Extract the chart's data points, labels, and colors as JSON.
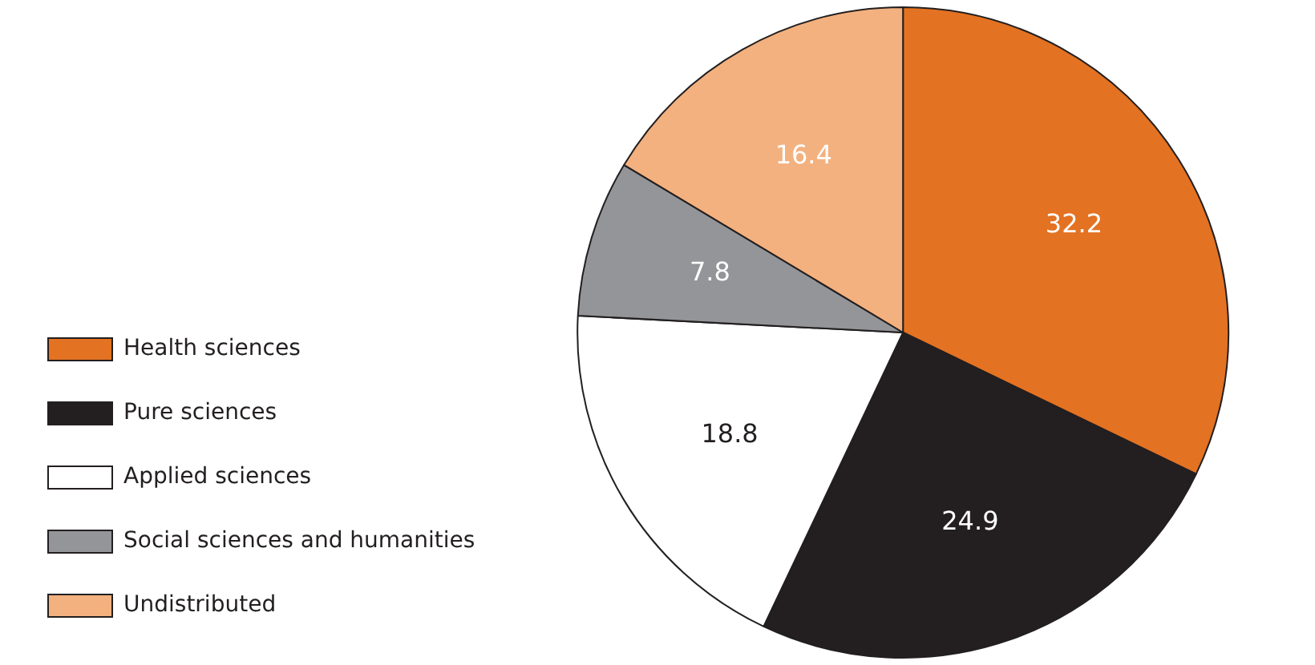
{
  "chart_data": {
    "type": "pie",
    "categories": [
      "Health sciences",
      "Pure sciences",
      "Applied sciences",
      "Social sciences and humanities",
      "Undistributed"
    ],
    "values": [
      32.2,
      24.9,
      18.8,
      7.8,
      16.4
    ],
    "colors": [
      "#e37222",
      "#231f20",
      "#ffffff",
      "#939598",
      "#f3b17f"
    ],
    "data_labels": true,
    "legend": "left"
  }
}
